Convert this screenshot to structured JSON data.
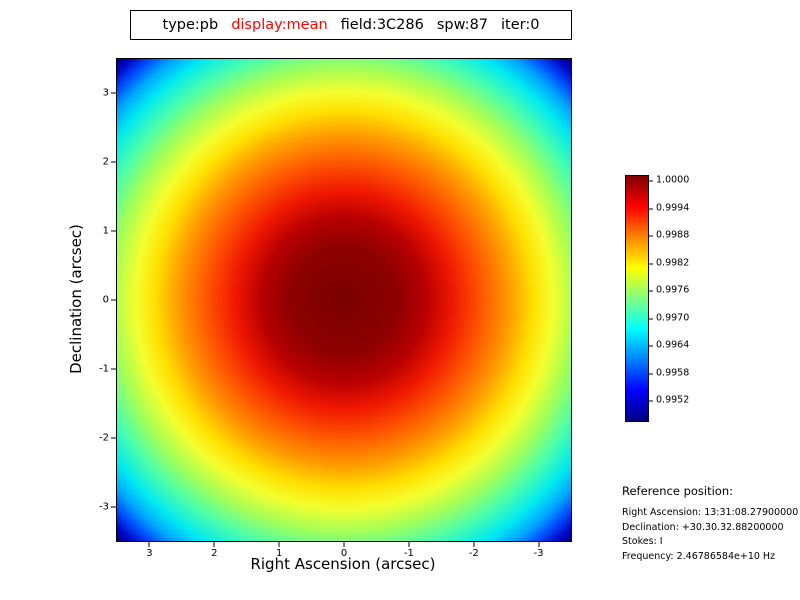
{
  "title": {
    "segments": [
      {
        "text": "type:pb",
        "color": "#000000"
      },
      {
        "text": "display:mean",
        "color": "#ff0000"
      },
      {
        "text": "field:3C286",
        "color": "#000000"
      },
      {
        "text": "spw:87",
        "color": "#000000"
      },
      {
        "text": "iter:0",
        "color": "#000000"
      }
    ]
  },
  "axes": {
    "x_label": "Right Ascension (arcsec)",
    "y_label": "Declination (arcsec)",
    "x_ticks": [
      "3",
      "2",
      "1",
      "0",
      "-1",
      "-2",
      "-3"
    ],
    "y_ticks": [
      "3",
      "2",
      "1",
      "0",
      "-1",
      "-2",
      "-3"
    ]
  },
  "colorbar": {
    "ticks": [
      "1.0000",
      "0.9994",
      "0.9988",
      "0.9982",
      "0.9976",
      "0.9970",
      "0.9964",
      "0.9958",
      "0.9952"
    ],
    "colormap": "jet"
  },
  "reference": {
    "heading": "Reference position:",
    "lines": [
      "Right Ascension: 13:31:08.27900000",
      "Declination: +30.30.32.88200000",
      "Stokes: I",
      "Frequency: 2.46786584e+10 Hz"
    ]
  },
  "chart_data": {
    "type": "heatmap",
    "title": "type:pb display:mean field:3C286 spw:87 iter:0",
    "xlabel": "Right Ascension (arcsec)",
    "ylabel": "Declination (arcsec)",
    "x_range": [
      3.5,
      -3.5
    ],
    "y_range": [
      -3.5,
      3.5
    ],
    "x_tick_values": [
      3,
      2,
      1,
      0,
      -1,
      -2,
      -3
    ],
    "y_tick_values": [
      -3,
      -2,
      -1,
      0,
      1,
      2,
      3
    ],
    "colormap": "jet",
    "colorbar_ticks": [
      1.0,
      0.9994,
      0.9988,
      0.9982,
      0.9976,
      0.997,
      0.9964,
      0.9958,
      0.9952
    ],
    "value_range": [
      0.9949,
      1.0
    ],
    "description": "Circularly symmetric primary-beam (pb) mean response centered at (0,0); value 1.0000 at center decreasing radially to ~0.9949 at the image corners",
    "radial_profile": [
      {
        "radius_arcsec": 0.0,
        "value": 1.0
      },
      {
        "radius_arcsec": 1.0,
        "value": 0.9998
      },
      {
        "radius_arcsec": 2.0,
        "value": 0.9992
      },
      {
        "radius_arcsec": 3.0,
        "value": 0.9981
      },
      {
        "radius_arcsec": 3.5,
        "value": 0.9975
      },
      {
        "radius_arcsec": 4.95,
        "value": 0.9949
      }
    ]
  }
}
